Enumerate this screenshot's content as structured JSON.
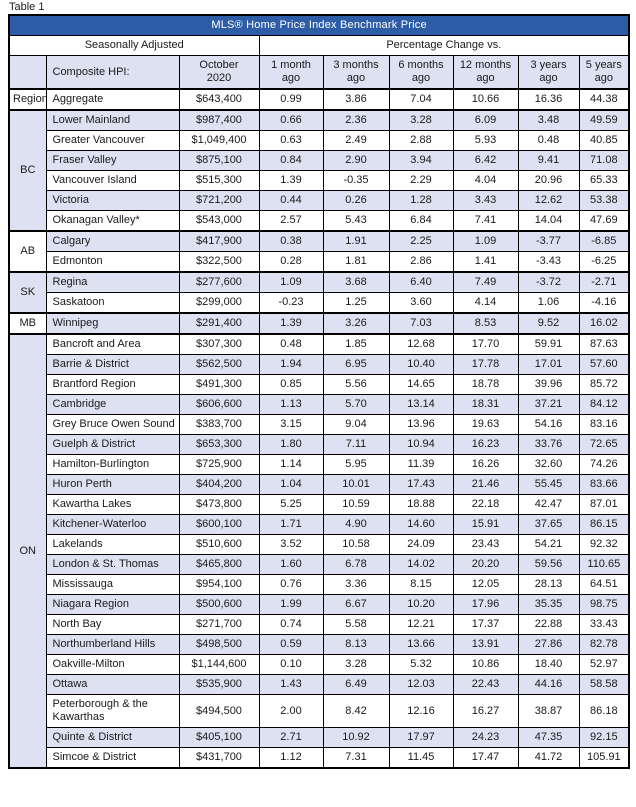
{
  "page": {
    "table_label": "Table 1"
  },
  "colors": {
    "title_bar_blue": "#2d5da6",
    "row_shade_lavender": "#dde1f1",
    "border_black": "#000000",
    "title_text_white": "#ffffff"
  },
  "table": {
    "title": "MLS® Home Price Index Benchmark Price",
    "header": {
      "group_left": "Seasonally Adjusted",
      "group_right": "Percentage Change vs.",
      "composite_label": "Composite HPI:",
      "date_label": "October\n2020",
      "change_columns": [
        "1 month\nago",
        "3 months\nago",
        "6 months\nago",
        "12 months\nago",
        "3 years\nago",
        "5 years\nago"
      ]
    },
    "groups": [
      {
        "region": "Region",
        "bold": true,
        "rows": [
          {
            "name": "Aggregate",
            "bold": true,
            "price": "$643,400",
            "changes": [
              "0.99",
              "3.86",
              "7.04",
              "10.66",
              "16.36",
              "44.38"
            ]
          }
        ]
      },
      {
        "region": "BC",
        "rows": [
          {
            "name": "Lower Mainland",
            "price": "$987,400",
            "changes": [
              "0.66",
              "2.36",
              "3.28",
              "6.09",
              "3.48",
              "49.59"
            ]
          },
          {
            "name": "Greater Vancouver",
            "price": "$1,049,400",
            "changes": [
              "0.63",
              "2.49",
              "2.88",
              "5.93",
              "0.48",
              "40.85"
            ]
          },
          {
            "name": "Fraser Valley",
            "price": "$875,100",
            "changes": [
              "0.84",
              "2.90",
              "3.94",
              "6.42",
              "9.41",
              "71.08"
            ]
          },
          {
            "name": "Vancouver Island",
            "price": "$515,300",
            "changes": [
              "1.39",
              "-0.35",
              "2.29",
              "4.04",
              "20.96",
              "65.33"
            ]
          },
          {
            "name": "Victoria",
            "price": "$721,200",
            "changes": [
              "0.44",
              "0.26",
              "1.28",
              "3.43",
              "12.62",
              "53.38"
            ]
          },
          {
            "name": "Okanagan Valley*",
            "price": "$543,000",
            "changes": [
              "2.57",
              "5.43",
              "6.84",
              "7.41",
              "14.04",
              "47.69"
            ]
          }
        ]
      },
      {
        "region": "AB",
        "rows": [
          {
            "name": "Calgary",
            "price": "$417,900",
            "changes": [
              "0.38",
              "1.91",
              "2.25",
              "1.09",
              "-3.77",
              "-6.85"
            ]
          },
          {
            "name": "Edmonton",
            "price": "$322,500",
            "changes": [
              "0.28",
              "1.81",
              "2.86",
              "1.41",
              "-3.43",
              "-6.25"
            ]
          }
        ]
      },
      {
        "region": "SK",
        "rows": [
          {
            "name": "Regina",
            "price": "$277,600",
            "changes": [
              "1.09",
              "3.68",
              "6.40",
              "7.49",
              "-3.72",
              "-2.71"
            ]
          },
          {
            "name": "Saskatoon",
            "price": "$299,000",
            "changes": [
              "-0.23",
              "1.25",
              "3.60",
              "4.14",
              "1.06",
              "-4.16"
            ]
          }
        ]
      },
      {
        "region": "MB",
        "rows": [
          {
            "name": "Winnipeg",
            "price": "$291,400",
            "changes": [
              "1.39",
              "3.26",
              "7.03",
              "8.53",
              "9.52",
              "16.02"
            ]
          }
        ]
      },
      {
        "region": "ON",
        "rows": [
          {
            "name": "Bancroft and Area",
            "price": "$307,300",
            "changes": [
              "0.48",
              "1.85",
              "12.68",
              "17.70",
              "59.91",
              "87.63"
            ]
          },
          {
            "name": "Barrie & District",
            "price": "$562,500",
            "changes": [
              "1.94",
              "6.95",
              "10.40",
              "17.78",
              "17.01",
              "57.60"
            ]
          },
          {
            "name": "Brantford Region",
            "price": "$491,300",
            "changes": [
              "0.85",
              "5.56",
              "14.65",
              "18.78",
              "39.96",
              "85.72"
            ]
          },
          {
            "name": "Cambridge",
            "price": "$606,600",
            "changes": [
              "1.13",
              "5.70",
              "13.14",
              "18.31",
              "37.21",
              "84.12"
            ]
          },
          {
            "name": "Grey Bruce Owen Sound",
            "price": "$383,700",
            "changes": [
              "3.15",
              "9.04",
              "13.96",
              "19.63",
              "54.16",
              "83.16"
            ]
          },
          {
            "name": "Guelph & District",
            "price": "$653,300",
            "changes": [
              "1.80",
              "7.11",
              "10.94",
              "16.23",
              "33.76",
              "72.65"
            ]
          },
          {
            "name": "Hamilton-Burlington",
            "price": "$725,900",
            "changes": [
              "1.14",
              "5.95",
              "11.39",
              "16.26",
              "32.60",
              "74.26"
            ]
          },
          {
            "name": "Huron Perth",
            "price": "$404,200",
            "changes": [
              "1.04",
              "10.01",
              "17.43",
              "21.46",
              "55.45",
              "83.66"
            ]
          },
          {
            "name": "Kawartha Lakes",
            "price": "$473,800",
            "changes": [
              "5.25",
              "10.59",
              "18.88",
              "22.18",
              "42.47",
              "87.01"
            ]
          },
          {
            "name": "Kitchener-Waterloo",
            "price": "$600,100",
            "changes": [
              "1.71",
              "4.90",
              "14.60",
              "15.91",
              "37.65",
              "86.15"
            ]
          },
          {
            "name": "Lakelands",
            "price": "$510,600",
            "changes": [
              "3.52",
              "10.58",
              "24.09",
              "23.43",
              "54.21",
              "92.32"
            ]
          },
          {
            "name": "London & St. Thomas",
            "price": "$465,800",
            "changes": [
              "1.60",
              "6.78",
              "14.02",
              "20.20",
              "59.56",
              "110.65"
            ]
          },
          {
            "name": "Mississauga",
            "price": "$954,100",
            "changes": [
              "0.76",
              "3.36",
              "8.15",
              "12.05",
              "28.13",
              "64.51"
            ]
          },
          {
            "name": "Niagara Region",
            "price": "$500,600",
            "changes": [
              "1.99",
              "6.67",
              "10.20",
              "17.96",
              "35.35",
              "98.75"
            ]
          },
          {
            "name": "North Bay",
            "price": "$271,700",
            "changes": [
              "0.74",
              "5.58",
              "12.21",
              "17.37",
              "22.88",
              "33.43"
            ]
          },
          {
            "name": "Northumberland Hills",
            "price": "$498,500",
            "changes": [
              "0.59",
              "8.13",
              "13.66",
              "13.91",
              "27.86",
              "82.78"
            ]
          },
          {
            "name": "Oakville-Milton",
            "price": "$1,144,600",
            "changes": [
              "0.10",
              "3.28",
              "5.32",
              "10.86",
              "18.40",
              "52.97"
            ]
          },
          {
            "name": "Ottawa",
            "price": "$535,900",
            "changes": [
              "1.43",
              "6.49",
              "12.03",
              "22.43",
              "44.16",
              "58.58"
            ]
          },
          {
            "name": "Peterborough & the Kawarthas",
            "price": "$494,500",
            "changes": [
              "2.00",
              "8.42",
              "12.16",
              "16.27",
              "38.87",
              "86.18"
            ]
          },
          {
            "name": "Quinte & District",
            "price": "$405,100",
            "changes": [
              "2.71",
              "10.92",
              "17.97",
              "24.23",
              "47.35",
              "92.15"
            ]
          },
          {
            "name": "Simcoe & District",
            "price": "$431,700",
            "changes": [
              "1.12",
              "7.31",
              "11.45",
              "17.47",
              "41.72",
              "105.91"
            ]
          }
        ]
      }
    ]
  }
}
